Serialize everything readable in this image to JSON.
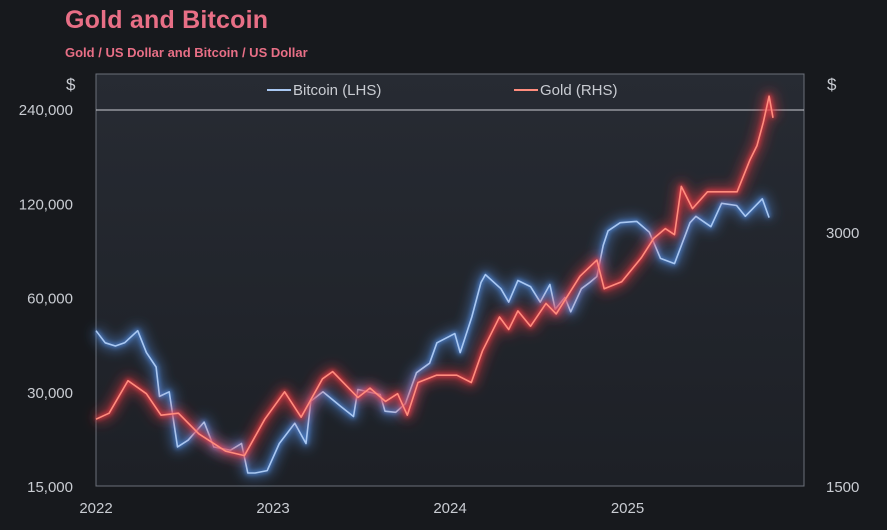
{
  "title": "Gold and Bitcoin",
  "subtitle": "Gold / US Dollar and Bitcoin / US Dollar",
  "colors": {
    "background": "#17191d",
    "plot_background": "#22262d",
    "title": "#e86f86",
    "bitcoin": "#a9c8f2",
    "bitcoin_glow": "#4f86d6",
    "gold": "#ff8d7e",
    "gold_glow": "#ee3b44"
  },
  "chart_data": {
    "type": "line",
    "title": "Gold and Bitcoin",
    "subtitle": "Gold / US Dollar and Bitcoin / US Dollar",
    "left_axis": {
      "unit": "$",
      "scale": "log",
      "range": [
        15000,
        240000
      ],
      "ticks": [
        15000,
        30000,
        60000,
        120000,
        240000
      ],
      "tick_labels": [
        "15,000",
        "30,000",
        "60,000",
        "120,000",
        "240,000"
      ]
    },
    "right_axis": {
      "unit": "$",
      "scale": "log",
      "range": [
        1500,
        4200
      ],
      "ticks": [
        1500,
        3000
      ],
      "tick_labels": [
        "1500",
        "3000"
      ]
    },
    "x_axis": {
      "range": [
        "2022-01-01",
        "2025-12-31"
      ],
      "tick_labels": [
        "2022",
        "2023",
        "2024",
        "2025"
      ],
      "ticks": [
        "2022-01-01",
        "2023-01-01",
        "2024-01-01",
        "2025-01-01"
      ]
    },
    "grid": false,
    "legend": {
      "position": "top-center",
      "entries": [
        "Bitcoin (LHS)",
        "Gold (RHS)"
      ]
    },
    "series": [
      {
        "name": "Bitcoin (LHS)",
        "axis": "left",
        "x": [
          "2022-01-01",
          "2022-01-20",
          "2022-02-10",
          "2022-03-01",
          "2022-03-28",
          "2022-04-15",
          "2022-05-05",
          "2022-05-12",
          "2022-06-01",
          "2022-06-18",
          "2022-07-10",
          "2022-08-12",
          "2022-09-01",
          "2022-10-05",
          "2022-10-28",
          "2022-11-10",
          "2022-11-25",
          "2022-12-20",
          "2023-01-14",
          "2023-02-15",
          "2023-03-10",
          "2023-03-20",
          "2023-04-14",
          "2023-05-20",
          "2023-06-16",
          "2023-06-25",
          "2023-08-10",
          "2023-08-20",
          "2023-09-11",
          "2023-10-01",
          "2023-10-24",
          "2023-11-20",
          "2023-12-05",
          "2024-01-11",
          "2024-01-22",
          "2024-02-15",
          "2024-03-05",
          "2024-03-14",
          "2024-04-15",
          "2024-05-01",
          "2024-05-20",
          "2024-06-15",
          "2024-07-05",
          "2024-07-25",
          "2024-08-05",
          "2024-08-25",
          "2024-09-06",
          "2024-09-28",
          "2024-10-15",
          "2024-10-30",
          "2024-11-12",
          "2024-11-22",
          "2024-12-17",
          "2025-01-20",
          "2025-02-15",
          "2025-03-10",
          "2025-04-08",
          "2025-05-10",
          "2025-05-22",
          "2025-06-22",
          "2025-07-14",
          "2025-08-14",
          "2025-09-01",
          "2025-10-06",
          "2025-10-20"
        ],
        "values": [
          47000,
          43000,
          42000,
          43000,
          47000,
          40000,
          36000,
          29000,
          30000,
          20000,
          21000,
          24000,
          20000,
          19500,
          20500,
          16500,
          16500,
          16800,
          20500,
          23800,
          20500,
          28000,
          30000,
          27000,
          25000,
          30500,
          29400,
          26000,
          25800,
          27500,
          34500,
          37000,
          43000,
          46000,
          40000,
          52000,
          67000,
          71000,
          64000,
          58000,
          68000,
          65000,
          58000,
          66000,
          55000,
          60000,
          54000,
          64000,
          67000,
          70000,
          88000,
          98000,
          104000,
          105000,
          97000,
          80000,
          77000,
          104000,
          109000,
          101000,
          120000,
          118000,
          109000,
          124000,
          108000
        ]
      },
      {
        "name": "Gold (RHS)",
        "axis": "right",
        "x": [
          "2022-01-01",
          "2022-01-28",
          "2022-03-08",
          "2022-04-15",
          "2022-05-15",
          "2022-06-20",
          "2022-08-01",
          "2022-09-25",
          "2022-11-03",
          "2022-12-15",
          "2023-01-25",
          "2023-02-28",
          "2023-04-13",
          "2023-05-04",
          "2023-06-25",
          "2023-07-20",
          "2023-08-21",
          "2023-09-15",
          "2023-10-05",
          "2023-10-27",
          "2023-12-04",
          "2024-01-15",
          "2024-02-14",
          "2024-03-08",
          "2024-04-12",
          "2024-05-01",
          "2024-05-20",
          "2024-06-15",
          "2024-07-17",
          "2024-08-07",
          "2024-09-25",
          "2024-10-30",
          "2024-11-14",
          "2024-12-20",
          "2025-01-30",
          "2025-02-24",
          "2025-03-20",
          "2025-04-08",
          "2025-04-22",
          "2025-05-15",
          "2025-06-15",
          "2025-07-15",
          "2025-08-15",
          "2025-09-10",
          "2025-09-25",
          "2025-10-08",
          "2025-10-20",
          "2025-10-28"
        ],
        "values": [
          1800,
          1830,
          2000,
          1930,
          1820,
          1830,
          1730,
          1650,
          1630,
          1800,
          1940,
          1810,
          2010,
          2050,
          1910,
          1960,
          1890,
          1930,
          1820,
          1990,
          2030,
          2030,
          1990,
          2170,
          2380,
          2300,
          2420,
          2320,
          2470,
          2400,
          2660,
          2780,
          2570,
          2620,
          2800,
          2950,
          3030,
          2980,
          3400,
          3200,
          3350,
          3350,
          3350,
          3650,
          3800,
          4050,
          4350,
          4100
        ]
      }
    ]
  }
}
